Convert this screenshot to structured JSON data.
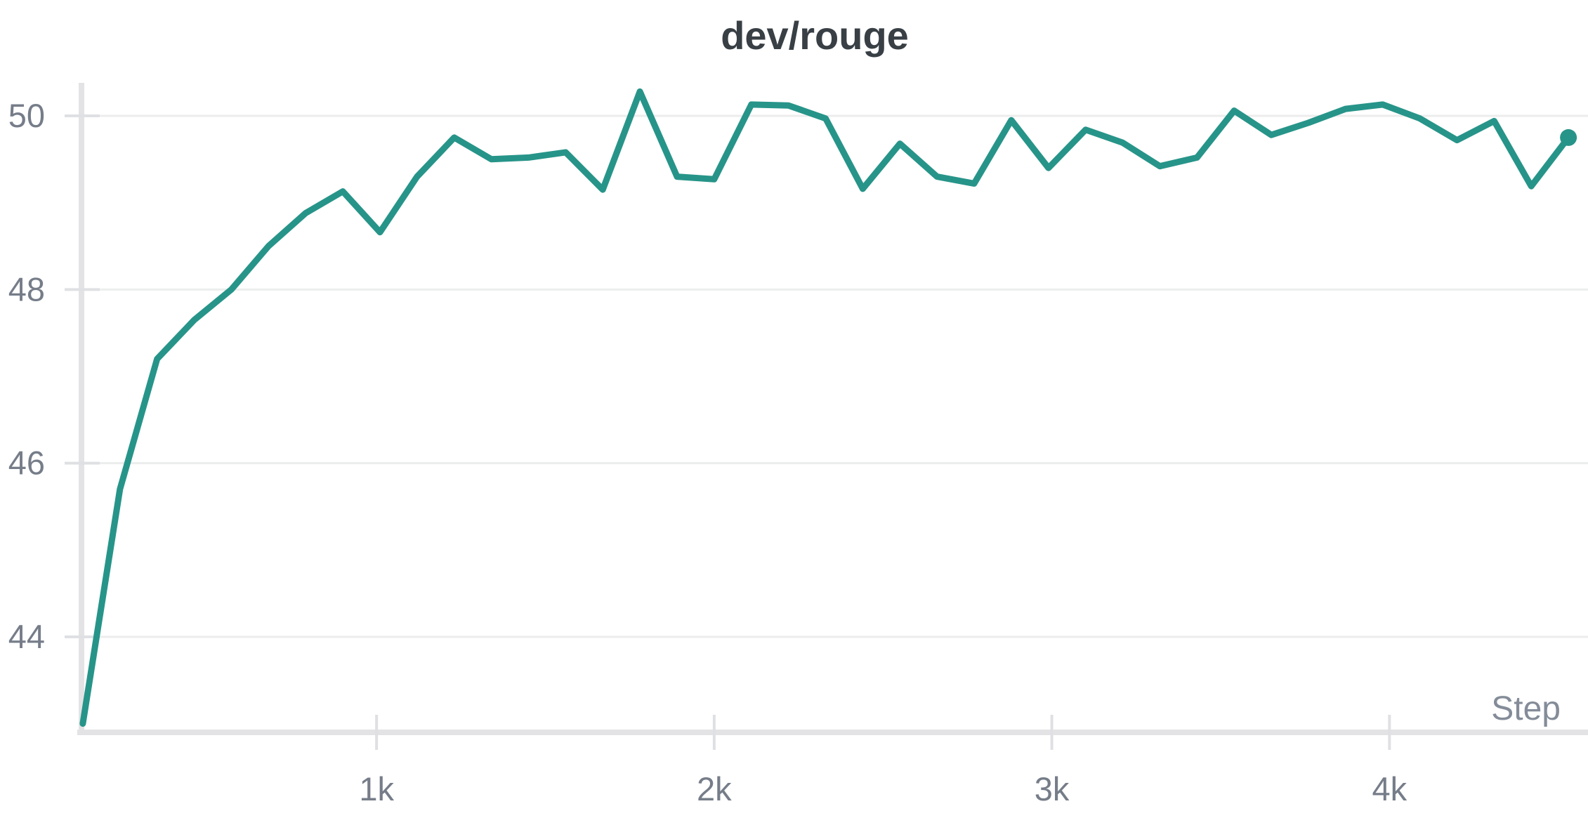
{
  "chart_data": {
    "type": "line",
    "title": "dev/rouge",
    "xlabel": "Step",
    "ylabel": "",
    "legend": "none",
    "grid": "horizontal-only",
    "end_marker": true,
    "x_axis": {
      "min": 126,
      "max": 4588,
      "ticks": [
        {
          "v": 1000,
          "label": "1k"
        },
        {
          "v": 2000,
          "label": "2k"
        },
        {
          "v": 3000,
          "label": "3k"
        },
        {
          "v": 4000,
          "label": "4k"
        }
      ]
    },
    "y_axis": {
      "min": 42.9,
      "max": 50.38,
      "ticks": [
        {
          "v": 44,
          "label": "44"
        },
        {
          "v": 46,
          "label": "46"
        },
        {
          "v": 48,
          "label": "48"
        },
        {
          "v": 50,
          "label": "50"
        }
      ]
    },
    "series": [
      {
        "name": "dev/rouge",
        "color": "#279489",
        "x": [
          130,
          240,
          350,
          460,
          570,
          680,
          790,
          900,
          1010,
          1120,
          1230,
          1340,
          1450,
          1560,
          1670,
          1780,
          1890,
          2000,
          2110,
          2220,
          2330,
          2440,
          2550,
          2660,
          2770,
          2880,
          2990,
          3100,
          3210,
          3320,
          3430,
          3540,
          3650,
          3760,
          3870,
          3980,
          4090,
          4200,
          4310,
          4420,
          4530
        ],
        "y": [
          43.0,
          45.7,
          47.2,
          47.65,
          48.0,
          48.5,
          48.88,
          49.13,
          48.66,
          49.3,
          49.75,
          49.5,
          49.52,
          49.58,
          49.15,
          50.28,
          49.3,
          49.27,
          50.13,
          50.12,
          49.97,
          49.16,
          49.68,
          49.3,
          49.22,
          49.95,
          49.4,
          49.84,
          49.69,
          49.42,
          49.52,
          50.06,
          49.78,
          49.92,
          50.08,
          50.13,
          49.97,
          49.72,
          49.94,
          49.19,
          49.75
        ]
      }
    ]
  },
  "colors": {
    "line": "#279489",
    "title_text": "#383f45",
    "tick_label": "#767d89",
    "xaxis_title": "#848c99",
    "axis_line": "#e3e3e5",
    "tick_mark": "#dfe0e3",
    "gridline": "#eceded",
    "background": "#ffffff"
  }
}
